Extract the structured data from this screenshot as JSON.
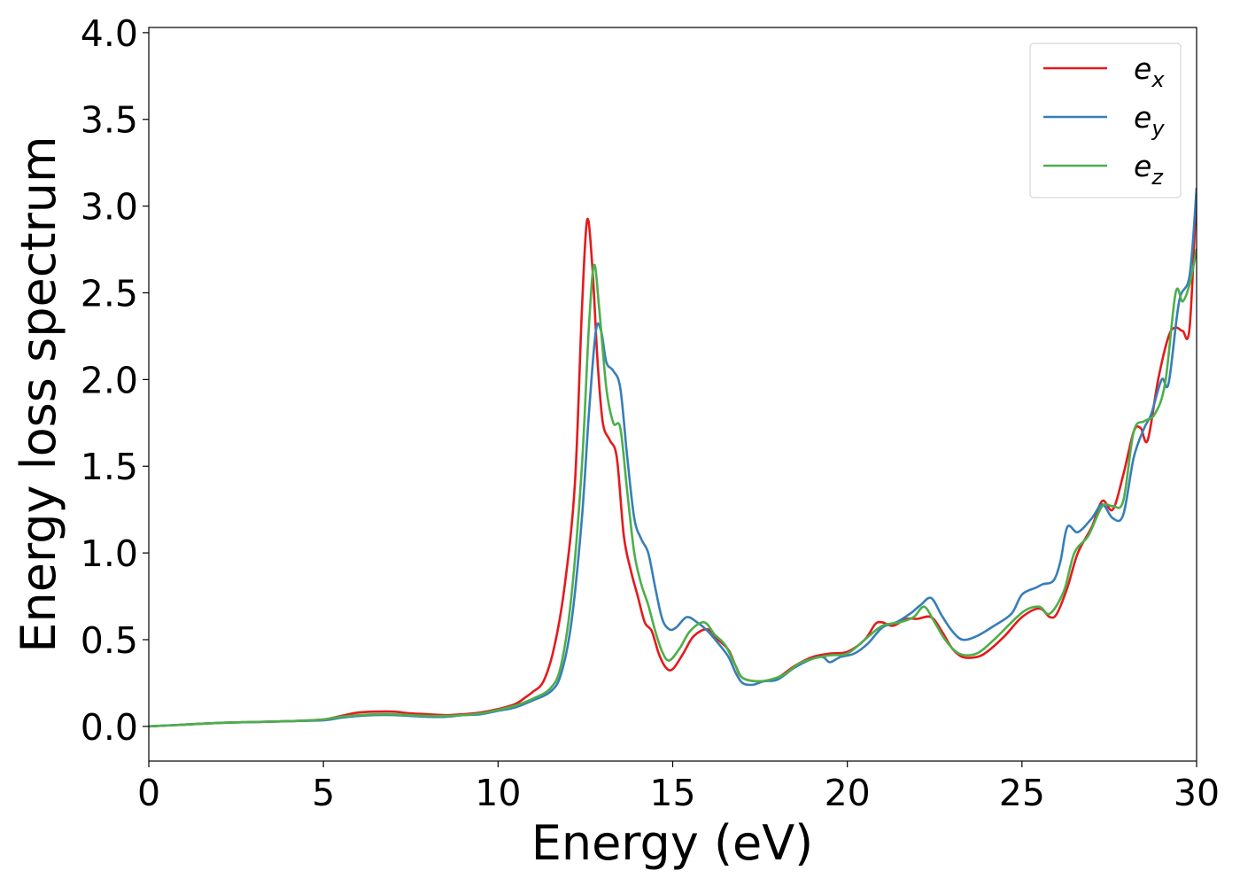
{
  "chart_data": {
    "type": "line",
    "title": "",
    "xlabel": "Energy (eV)",
    "ylabel": "Energy loss spectrum",
    "xlim": [
      0,
      30
    ],
    "ylim": [
      -0.2,
      4.03
    ],
    "x_ticks": [
      0,
      5,
      10,
      15,
      20,
      25,
      30
    ],
    "x_tick_labels": [
      "0",
      "5",
      "10",
      "15",
      "20",
      "25",
      "30"
    ],
    "y_ticks": [
      0.0,
      0.5,
      1.0,
      1.5,
      2.0,
      2.5,
      3.0,
      3.5,
      4.0
    ],
    "y_tick_labels": [
      "0.0",
      "0.5",
      "1.0",
      "1.5",
      "2.0",
      "2.5",
      "3.0",
      "3.5",
      "4.0"
    ],
    "grid": false,
    "legend_position": "top-right",
    "series": [
      {
        "name": "e",
        "subscript": "x",
        "color": "#e41a1c",
        "points": [
          [
            0,
            0
          ],
          [
            1,
            0.01
          ],
          [
            2,
            0.02
          ],
          [
            3,
            0.025
          ],
          [
            4,
            0.03
          ],
          [
            5,
            0.04
          ],
          [
            5.5,
            0.06
          ],
          [
            6,
            0.08
          ],
          [
            6.5,
            0.085
          ],
          [
            7,
            0.085
          ],
          [
            7.5,
            0.075
          ],
          [
            8,
            0.07
          ],
          [
            8.5,
            0.065
          ],
          [
            9,
            0.07
          ],
          [
            9.5,
            0.08
          ],
          [
            10,
            0.1
          ],
          [
            10.5,
            0.13
          ],
          [
            10.8,
            0.17
          ],
          [
            11,
            0.2
          ],
          [
            11.3,
            0.26
          ],
          [
            11.6,
            0.45
          ],
          [
            11.9,
            0.8
          ],
          [
            12.2,
            1.4
          ],
          [
            12.4,
            2.4
          ],
          [
            12.55,
            2.92
          ],
          [
            12.7,
            2.65
          ],
          [
            12.85,
            2.1
          ],
          [
            13,
            1.75
          ],
          [
            13.2,
            1.65
          ],
          [
            13.4,
            1.55
          ],
          [
            13.6,
            1.1
          ],
          [
            13.8,
            0.9
          ],
          [
            14,
            0.75
          ],
          [
            14.2,
            0.6
          ],
          [
            14.4,
            0.55
          ],
          [
            14.6,
            0.42
          ],
          [
            14.8,
            0.34
          ],
          [
            15,
            0.33
          ],
          [
            15.3,
            0.42
          ],
          [
            15.6,
            0.52
          ],
          [
            16,
            0.56
          ],
          [
            16.3,
            0.5
          ],
          [
            16.6,
            0.44
          ],
          [
            16.8,
            0.35
          ],
          [
            17,
            0.28
          ],
          [
            17.5,
            0.26
          ],
          [
            18,
            0.28
          ],
          [
            18.5,
            0.35
          ],
          [
            19,
            0.4
          ],
          [
            19.5,
            0.42
          ],
          [
            20,
            0.43
          ],
          [
            20.5,
            0.5
          ],
          [
            20.8,
            0.59
          ],
          [
            21,
            0.6
          ],
          [
            21.3,
            0.58
          ],
          [
            21.7,
            0.62
          ],
          [
            22,
            0.62
          ],
          [
            22.4,
            0.63
          ],
          [
            22.7,
            0.55
          ],
          [
            23,
            0.45
          ],
          [
            23.3,
            0.4
          ],
          [
            23.7,
            0.4
          ],
          [
            24,
            0.43
          ],
          [
            24.5,
            0.52
          ],
          [
            25,
            0.63
          ],
          [
            25.5,
            0.68
          ],
          [
            25.8,
            0.63
          ],
          [
            26,
            0.65
          ],
          [
            26.3,
            0.8
          ],
          [
            26.6,
            1.0
          ],
          [
            27,
            1.15
          ],
          [
            27.3,
            1.3
          ],
          [
            27.6,
            1.25
          ],
          [
            27.9,
            1.45
          ],
          [
            28.2,
            1.7
          ],
          [
            28.4,
            1.72
          ],
          [
            28.6,
            1.65
          ],
          [
            28.9,
            2.0
          ],
          [
            29.2,
            2.25
          ],
          [
            29.4,
            2.3
          ],
          [
            29.6,
            2.28
          ],
          [
            29.8,
            2.3
          ],
          [
            30,
            3.1
          ]
        ]
      },
      {
        "name": "e",
        "subscript": "y",
        "color": "#377eb8",
        "points": [
          [
            0,
            0
          ],
          [
            1,
            0.01
          ],
          [
            2,
            0.02
          ],
          [
            3,
            0.025
          ],
          [
            4,
            0.03
          ],
          [
            5,
            0.035
          ],
          [
            5.5,
            0.05
          ],
          [
            6,
            0.06
          ],
          [
            6.5,
            0.065
          ],
          [
            7,
            0.065
          ],
          [
            7.5,
            0.06
          ],
          [
            8,
            0.055
          ],
          [
            8.5,
            0.055
          ],
          [
            9,
            0.065
          ],
          [
            9.5,
            0.07
          ],
          [
            10,
            0.09
          ],
          [
            10.5,
            0.11
          ],
          [
            11,
            0.15
          ],
          [
            11.5,
            0.2
          ],
          [
            11.8,
            0.3
          ],
          [
            12.1,
            0.6
          ],
          [
            12.4,
            1.2
          ],
          [
            12.6,
            1.8
          ],
          [
            12.8,
            2.28
          ],
          [
            12.95,
            2.28
          ],
          [
            13.1,
            2.1
          ],
          [
            13.3,
            2.05
          ],
          [
            13.5,
            1.95
          ],
          [
            13.7,
            1.55
          ],
          [
            13.9,
            1.2
          ],
          [
            14.1,
            1.08
          ],
          [
            14.3,
            1.0
          ],
          [
            14.5,
            0.8
          ],
          [
            14.7,
            0.62
          ],
          [
            14.9,
            0.56
          ],
          [
            15.1,
            0.57
          ],
          [
            15.4,
            0.63
          ],
          [
            15.7,
            0.6
          ],
          [
            16,
            0.55
          ],
          [
            16.3,
            0.48
          ],
          [
            16.6,
            0.4
          ],
          [
            16.8,
            0.31
          ],
          [
            17,
            0.25
          ],
          [
            17.3,
            0.24
          ],
          [
            17.6,
            0.26
          ],
          [
            18,
            0.27
          ],
          [
            18.5,
            0.34
          ],
          [
            19,
            0.39
          ],
          [
            19.3,
            0.4
          ],
          [
            19.5,
            0.37
          ],
          [
            19.8,
            0.4
          ],
          [
            20.2,
            0.42
          ],
          [
            20.6,
            0.48
          ],
          [
            21,
            0.57
          ],
          [
            21.4,
            0.6
          ],
          [
            21.8,
            0.65
          ],
          [
            22.1,
            0.7
          ],
          [
            22.4,
            0.74
          ],
          [
            22.7,
            0.64
          ],
          [
            23,
            0.55
          ],
          [
            23.3,
            0.5
          ],
          [
            23.7,
            0.52
          ],
          [
            24.2,
            0.58
          ],
          [
            24.7,
            0.65
          ],
          [
            25,
            0.76
          ],
          [
            25.4,
            0.8
          ],
          [
            25.6,
            0.82
          ],
          [
            25.9,
            0.84
          ],
          [
            26.1,
            0.95
          ],
          [
            26.3,
            1.15
          ],
          [
            26.6,
            1.12
          ],
          [
            27,
            1.2
          ],
          [
            27.3,
            1.28
          ],
          [
            27.6,
            1.2
          ],
          [
            27.9,
            1.22
          ],
          [
            28.2,
            1.55
          ],
          [
            28.5,
            1.72
          ],
          [
            28.7,
            1.8
          ],
          [
            29,
            2.0
          ],
          [
            29.2,
            1.98
          ],
          [
            29.5,
            2.45
          ],
          [
            29.8,
            2.6
          ],
          [
            30,
            3.1
          ]
        ]
      },
      {
        "name": "e",
        "subscript": "z",
        "color": "#4daf4a",
        "points": [
          [
            0,
            0
          ],
          [
            1,
            0.01
          ],
          [
            2,
            0.02
          ],
          [
            3,
            0.025
          ],
          [
            4,
            0.03
          ],
          [
            5,
            0.04
          ],
          [
            5.5,
            0.055
          ],
          [
            6,
            0.065
          ],
          [
            6.5,
            0.07
          ],
          [
            7,
            0.07
          ],
          [
            7.5,
            0.065
          ],
          [
            8,
            0.06
          ],
          [
            8.5,
            0.06
          ],
          [
            9,
            0.065
          ],
          [
            9.5,
            0.075
          ],
          [
            10,
            0.095
          ],
          [
            10.5,
            0.12
          ],
          [
            11,
            0.16
          ],
          [
            11.5,
            0.22
          ],
          [
            11.8,
            0.35
          ],
          [
            12.1,
            0.75
          ],
          [
            12.4,
            1.5
          ],
          [
            12.6,
            2.3
          ],
          [
            12.75,
            2.66
          ],
          [
            12.9,
            2.4
          ],
          [
            13.1,
            1.95
          ],
          [
            13.3,
            1.75
          ],
          [
            13.5,
            1.72
          ],
          [
            13.7,
            1.35
          ],
          [
            13.9,
            1.0
          ],
          [
            14.1,
            0.82
          ],
          [
            14.3,
            0.7
          ],
          [
            14.5,
            0.55
          ],
          [
            14.7,
            0.43
          ],
          [
            14.9,
            0.38
          ],
          [
            15.2,
            0.45
          ],
          [
            15.5,
            0.55
          ],
          [
            15.9,
            0.6
          ],
          [
            16.2,
            0.53
          ],
          [
            16.5,
            0.47
          ],
          [
            16.8,
            0.35
          ],
          [
            17,
            0.28
          ],
          [
            17.4,
            0.26
          ],
          [
            17.8,
            0.27
          ],
          [
            18.2,
            0.3
          ],
          [
            18.6,
            0.36
          ],
          [
            19,
            0.39
          ],
          [
            19.5,
            0.41
          ],
          [
            20,
            0.42
          ],
          [
            20.5,
            0.5
          ],
          [
            21,
            0.58
          ],
          [
            21.5,
            0.6
          ],
          [
            21.9,
            0.63
          ],
          [
            22.2,
            0.69
          ],
          [
            22.5,
            0.6
          ],
          [
            22.8,
            0.5
          ],
          [
            23.2,
            0.42
          ],
          [
            23.7,
            0.42
          ],
          [
            24.2,
            0.5
          ],
          [
            24.7,
            0.6
          ],
          [
            25.1,
            0.67
          ],
          [
            25.5,
            0.69
          ],
          [
            25.8,
            0.65
          ],
          [
            26.2,
            0.78
          ],
          [
            26.5,
            1.0
          ],
          [
            26.9,
            1.1
          ],
          [
            27.3,
            1.27
          ],
          [
            27.6,
            1.27
          ],
          [
            27.9,
            1.3
          ],
          [
            28.2,
            1.7
          ],
          [
            28.5,
            1.76
          ],
          [
            28.8,
            1.8
          ],
          [
            29.1,
            1.98
          ],
          [
            29.4,
            2.5
          ],
          [
            29.6,
            2.45
          ],
          [
            29.8,
            2.55
          ],
          [
            30,
            2.75
          ]
        ]
      }
    ]
  }
}
